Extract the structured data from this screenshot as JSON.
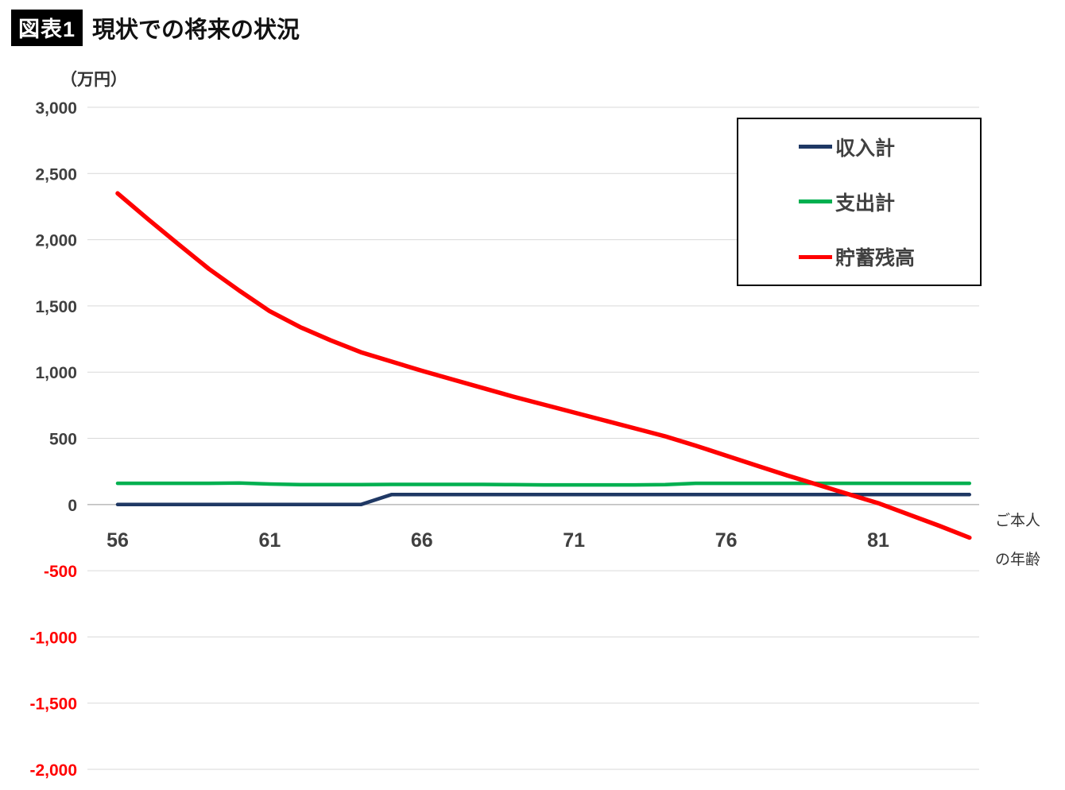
{
  "title": {
    "tag": "図表1",
    "text": "現状での将来の状況"
  },
  "unit_label": "（万円）",
  "x_axis_title_line1": "ご本人",
  "x_axis_title_line2": "の年齢",
  "colors": {
    "income": "#1f3864",
    "expense": "#00b050",
    "savings": "#ff0000",
    "axis_text": "#404040",
    "negative_tick": "#ff0000",
    "gridline": "#d9d9d9"
  },
  "legend": [
    {
      "label": "収入計",
      "color": "#1f3864"
    },
    {
      "label": "支出計",
      "color": "#00b050"
    },
    {
      "label": "貯蓄残高",
      "color": "#ff0000"
    }
  ],
  "chart_data": {
    "type": "line",
    "title": "現状での将来の状況",
    "ylabel": "（万円）",
    "xlabel": "ご本人の年齢",
    "ylim": [
      -2000,
      3000
    ],
    "ytick_interval": 500,
    "yticks": [
      "3,000",
      "2,500",
      "2,000",
      "1,500",
      "1,000",
      "500",
      "0",
      "-500",
      "-1,000",
      "-1,500",
      "-2,000"
    ],
    "xticks": [
      56,
      61,
      66,
      71,
      76,
      81
    ],
    "grid": true,
    "legend_position": "top-right",
    "x": [
      56,
      57,
      58,
      59,
      60,
      61,
      62,
      63,
      64,
      65,
      66,
      67,
      68,
      69,
      70,
      71,
      72,
      73,
      74,
      75,
      76,
      77,
      78,
      79,
      80,
      81,
      82,
      83,
      84
    ],
    "series": [
      {
        "name": "収入計",
        "color": "#1f3864",
        "width": 4.5,
        "values": [
          0,
          0,
          0,
          0,
          0,
          0,
          0,
          0,
          0,
          75,
          75,
          75,
          75,
          75,
          75,
          75,
          75,
          75,
          75,
          75,
          75,
          75,
          75,
          75,
          75,
          75,
          75,
          75,
          75
        ]
      },
      {
        "name": "支出計",
        "color": "#00b050",
        "width": 4.5,
        "values": [
          160,
          160,
          160,
          160,
          162,
          155,
          150,
          150,
          150,
          152,
          152,
          152,
          152,
          150,
          148,
          148,
          148,
          148,
          150,
          160,
          160,
          160,
          160,
          160,
          160,
          160,
          160,
          160,
          160
        ]
      },
      {
        "name": "貯蓄残高",
        "color": "#ff0000",
        "width": 5.5,
        "values": [
          2350,
          2155,
          1965,
          1780,
          1615,
          1460,
          1340,
          1240,
          1150,
          1080,
          1010,
          945,
          880,
          815,
          755,
          695,
          635,
          575,
          515,
          445,
          370,
          295,
          220,
          150,
          80,
          10,
          -75,
          -160,
          -250
        ]
      }
    ]
  }
}
